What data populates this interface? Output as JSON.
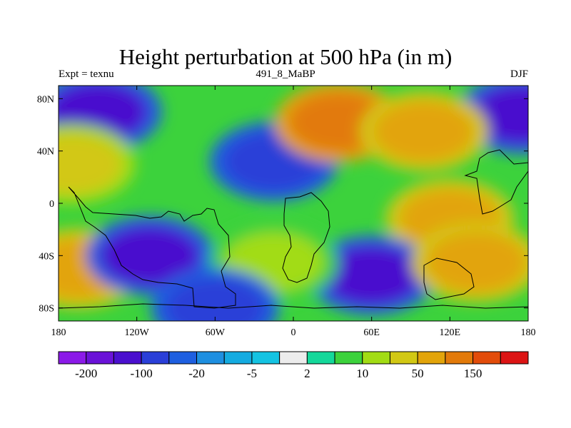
{
  "chart_data": {
    "type": "heatmap",
    "title": "Height perturbation at 500 hPa (in m)",
    "subtitle_left": "Expt = texnu",
    "subtitle_center": "491_8_MaBP",
    "subtitle_right": "DJF",
    "xlim": [
      -180,
      180
    ],
    "ylim": [
      -90,
      90
    ],
    "x_ticks": [
      {
        "value": -180,
        "label": "180"
      },
      {
        "value": -120,
        "label": "120W"
      },
      {
        "value": -60,
        "label": "60W"
      },
      {
        "value": 0,
        "label": "0"
      },
      {
        "value": 60,
        "label": "60E"
      },
      {
        "value": 120,
        "label": "120E"
      },
      {
        "value": 180,
        "label": "180"
      }
    ],
    "y_ticks": [
      {
        "value": 80,
        "label": "80N"
      },
      {
        "value": 40,
        "label": "40N"
      },
      {
        "value": 0,
        "label": "0"
      },
      {
        "value": -40,
        "label": "40S"
      },
      {
        "value": -80,
        "label": "80S"
      }
    ],
    "colorbar": {
      "colors": [
        "#8b1ae8",
        "#6a12d8",
        "#4a0fce",
        "#2a3fd8",
        "#1e5fe0",
        "#1e8fe0",
        "#14abe0",
        "#14c3e2",
        "#ececec",
        "#14d89a",
        "#3cd23c",
        "#a2dc14",
        "#d2c814",
        "#e2a40a",
        "#e27a0a",
        "#e24c0a",
        "#dc1414"
      ],
      "labels": [
        {
          "text": "-200",
          "at_boundary": 1
        },
        {
          "text": "-100",
          "at_boundary": 3
        },
        {
          "text": "-20",
          "at_boundary": 5
        },
        {
          "text": "-5",
          "at_boundary": 7
        },
        {
          "text": "2",
          "at_boundary": 9
        },
        {
          "text": "10",
          "at_boundary": 11
        },
        {
          "text": "50",
          "at_boundary": 13
        },
        {
          "text": "150",
          "at_boundary": 15
        }
      ]
    },
    "field_features": [
      {
        "name": "north-pacific-low",
        "lon": -150,
        "lat": 70,
        "value": -100
      },
      {
        "name": "north-pacific-low-wrap",
        "lon": 175,
        "lat": 68,
        "value": -100
      },
      {
        "name": "north-atlantic-low",
        "lon": -15,
        "lat": 32,
        "value": -60
      },
      {
        "name": "eurasian-high",
        "lon": 35,
        "lat": 62,
        "value": 150
      },
      {
        "name": "asian-ridge",
        "lon": 100,
        "lat": 55,
        "value": 70
      },
      {
        "name": "east-pacific-ridge",
        "lon": -170,
        "lat": 30,
        "value": 30
      },
      {
        "name": "tropical-ridge",
        "lon": 120,
        "lat": -12,
        "value": 60
      },
      {
        "name": "south-pacific-high",
        "lon": -165,
        "lat": -50,
        "value": 90
      },
      {
        "name": "south-pacific-low",
        "lon": -110,
        "lat": -40,
        "value": -100
      },
      {
        "name": "southern-low",
        "lon": 60,
        "lat": -55,
        "value": -100
      },
      {
        "name": "south-atlantic-ridge",
        "lon": -15,
        "lat": -45,
        "value": 20
      },
      {
        "name": "south-indian-high",
        "lon": 140,
        "lat": -45,
        "value": 60
      },
      {
        "name": "antarctic-low",
        "lon": -60,
        "lat": -80,
        "value": -60
      }
    ]
  }
}
